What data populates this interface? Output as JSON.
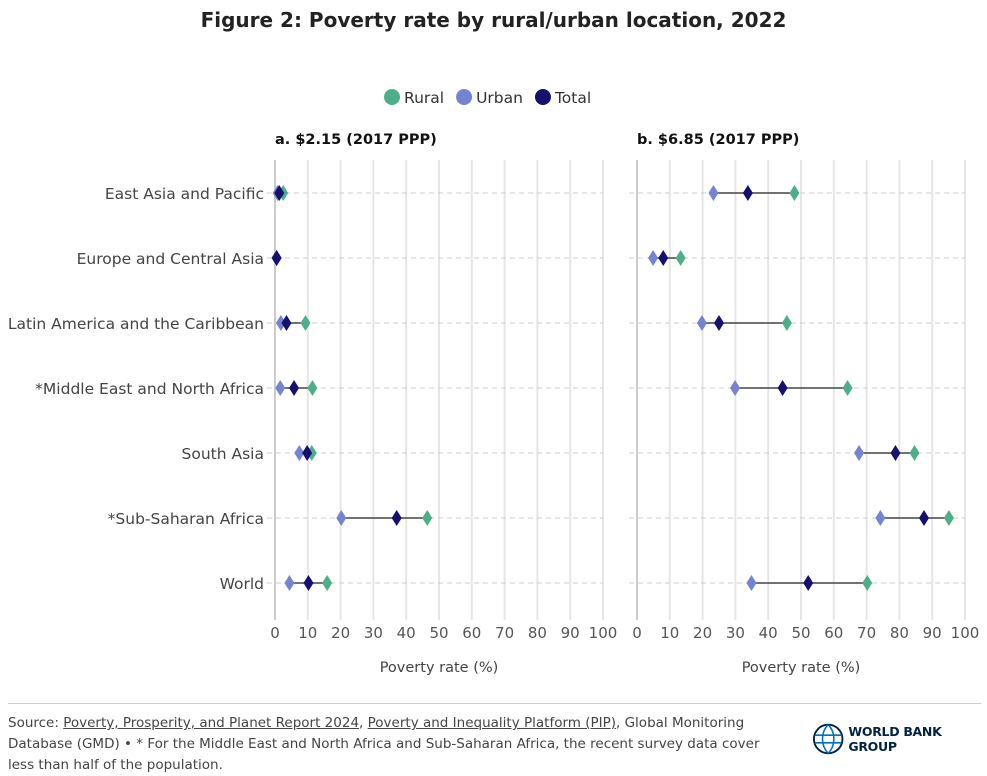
{
  "title": "Figure 2: Poverty rate by rural/urban location, 2022",
  "legend": [
    {
      "name": "Rural",
      "color": "#4caf8a"
    },
    {
      "name": "Urban",
      "color": "#7484d2"
    },
    {
      "name": "Total",
      "color": "#16106e"
    }
  ],
  "chart_data": [
    {
      "type": "dot-range",
      "title": "a. $2.15 (2017 PPP)",
      "xlabel": "Poverty rate (%)",
      "xlim": [
        0,
        100
      ],
      "xticks": [
        0,
        10,
        20,
        30,
        40,
        50,
        60,
        70,
        80,
        90,
        100
      ],
      "grid": true,
      "legend_position": "top",
      "categories": [
        "East Asia and Pacific",
        "Europe and Central Asia",
        "Latin America and the Caribbean",
        "*Middle East and North Africa",
        "South Asia",
        "*Sub-Saharan Africa",
        "World"
      ],
      "series": [
        {
          "name": "Rural",
          "values": [
            2.5,
            0.5,
            9.3,
            11.4,
            11.2,
            46.4,
            15.9
          ]
        },
        {
          "name": "Urban",
          "values": [
            0.8,
            0.5,
            1.8,
            1.6,
            7.4,
            20.2,
            4.4
          ]
        },
        {
          "name": "Total",
          "values": [
            1.3,
            0.5,
            3.5,
            5.8,
            9.8,
            37.1,
            10.2
          ]
        }
      ]
    },
    {
      "type": "dot-range",
      "title": "b. $6.85 (2017 PPP)",
      "xlabel": "Poverty rate (%)",
      "xlim": [
        0,
        100
      ],
      "xticks": [
        0,
        10,
        20,
        30,
        40,
        50,
        60,
        70,
        80,
        90,
        100
      ],
      "grid": true,
      "legend_position": "top",
      "categories": [
        "East Asia and Pacific",
        "Europe and Central Asia",
        "Latin America and the Caribbean",
        "*Middle East and North Africa",
        "South Asia",
        "*Sub-Saharan Africa",
        "World"
      ],
      "series": [
        {
          "name": "Rural",
          "values": [
            48.0,
            13.3,
            45.7,
            64.2,
            84.6,
            95.1,
            70.2
          ]
        },
        {
          "name": "Urban",
          "values": [
            23.3,
            4.9,
            19.8,
            29.9,
            67.7,
            74.2,
            34.9
          ]
        },
        {
          "name": "Total",
          "values": [
            33.8,
            8.0,
            25.0,
            44.4,
            78.8,
            87.5,
            52.2
          ]
        }
      ]
    }
  ],
  "footer": {
    "source_prefix": "Source: ",
    "link1": "Poverty, Prosperity, and Planet Report 2024",
    "sep1": ", ",
    "link2": "Poverty and Inequality Platform (PIP)",
    "rest": ", Global Monitoring Database (GMD) • * For the Middle East and North Africa and Sub-Saharan Africa, the recent survey data cover less than half of the population.",
    "logo_text": "WORLD BANK GROUP"
  }
}
